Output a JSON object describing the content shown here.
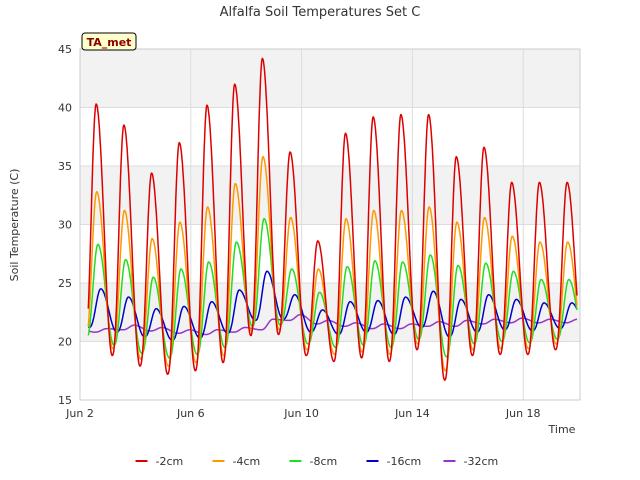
{
  "chart_data": {
    "type": "line",
    "title": "Alfalfa Soil Temperatures Set C",
    "xlabel": "Time",
    "ylabel": "Soil Temperature (C)",
    "station_badge": "TA_met",
    "ylim": [
      15,
      45
    ],
    "y_ticks": [
      15,
      20,
      25,
      30,
      35,
      40,
      45
    ],
    "xlim": [
      "2024-06-02",
      "2024-06-20"
    ],
    "x_ticks": [
      {
        "date": "2024-06-02",
        "label": "Jun 2"
      },
      {
        "date": "2024-06-06",
        "label": "Jun 6"
      },
      {
        "date": "2024-06-10",
        "label": "Jun 10"
      },
      {
        "date": "2024-06-14",
        "label": "Jun 14"
      },
      {
        "date": "2024-06-18",
        "label": "Jun 18"
      }
    ],
    "grid": true,
    "legend_position": "bottom",
    "daily_extremes": {
      "days": [
        "2024-06-02",
        "2024-06-03",
        "2024-06-04",
        "2024-06-05",
        "2024-06-06",
        "2024-06-07",
        "2024-06-08",
        "2024-06-09",
        "2024-06-10",
        "2024-06-11",
        "2024-06-12",
        "2024-06-13",
        "2024-06-14",
        "2024-06-15",
        "2024-06-16",
        "2024-06-17",
        "2024-06-18",
        "2024-06-19"
      ],
      "series": [
        {
          "name": "-2cm",
          "color": "#dd0000",
          "peak_hour": 14,
          "min": [
            19.3,
            18.8,
            17.9,
            17.2,
            17.5,
            18.2,
            20.5,
            20.6,
            18.8,
            18.3,
            18.6,
            18.3,
            19.3,
            16.7,
            18.8,
            18.9,
            18.9,
            19.3
          ],
          "max": [
            40.3,
            38.5,
            34.4,
            37.0,
            40.2,
            42.0,
            44.2,
            36.2,
            28.6,
            37.8,
            39.2,
            39.4,
            39.4,
            35.8,
            36.6,
            33.6,
            33.6,
            33.6
          ]
        },
        {
          "name": "-4cm",
          "color": "#ff9900",
          "peak_hour": 14.5,
          "min": [
            19.8,
            19.4,
            18.5,
            17.9,
            18.2,
            18.8,
            20.9,
            21.0,
            19.3,
            18.9,
            19.1,
            18.9,
            19.8,
            17.5,
            19.3,
            19.4,
            19.4,
            19.8
          ],
          "max": [
            32.8,
            31.2,
            28.8,
            30.2,
            31.5,
            33.5,
            35.8,
            30.6,
            26.2,
            30.5,
            31.2,
            31.2,
            31.5,
            30.2,
            30.6,
            29.0,
            28.5,
            28.5
          ]
        },
        {
          "name": "-8cm",
          "color": "#22dd22",
          "peak_hour": 15.5,
          "min": [
            20.2,
            19.7,
            19.0,
            18.6,
            18.9,
            19.5,
            21.3,
            21.4,
            19.8,
            19.5,
            19.7,
            19.5,
            20.2,
            18.7,
            19.8,
            20.0,
            19.9,
            20.2
          ],
          "max": [
            28.3,
            27.0,
            25.5,
            26.2,
            26.8,
            28.5,
            30.5,
            26.2,
            24.2,
            26.4,
            26.9,
            26.8,
            27.4,
            26.5,
            26.7,
            26.0,
            25.3,
            25.3
          ]
        },
        {
          "name": "-16cm",
          "color": "#0000cc",
          "peak_hour": 18,
          "min": [
            21.2,
            20.8,
            20.4,
            20.1,
            20.3,
            20.7,
            21.8,
            21.9,
            20.8,
            20.6,
            20.8,
            20.6,
            21.2,
            20.4,
            20.8,
            21.0,
            20.9,
            21.1
          ],
          "max": [
            24.5,
            23.8,
            22.8,
            23.0,
            23.4,
            24.4,
            26.0,
            24.0,
            22.7,
            23.4,
            23.5,
            23.8,
            24.3,
            23.6,
            24.0,
            23.6,
            23.3,
            23.3
          ]
        },
        {
          "name": "-32cm",
          "color": "#9933cc",
          "peak_hour": 23,
          "min": [
            20.8,
            21.0,
            20.9,
            20.7,
            20.6,
            20.8,
            21.0,
            21.8,
            21.5,
            21.3,
            21.1,
            21.1,
            21.3,
            21.3,
            21.5,
            21.6,
            21.6,
            21.6
          ],
          "max": [
            21.1,
            21.4,
            21.2,
            21.0,
            21.0,
            21.2,
            21.9,
            22.3,
            21.8,
            21.6,
            21.5,
            21.5,
            21.7,
            21.8,
            21.9,
            22.0,
            21.9,
            21.9
          ]
        }
      ]
    }
  }
}
